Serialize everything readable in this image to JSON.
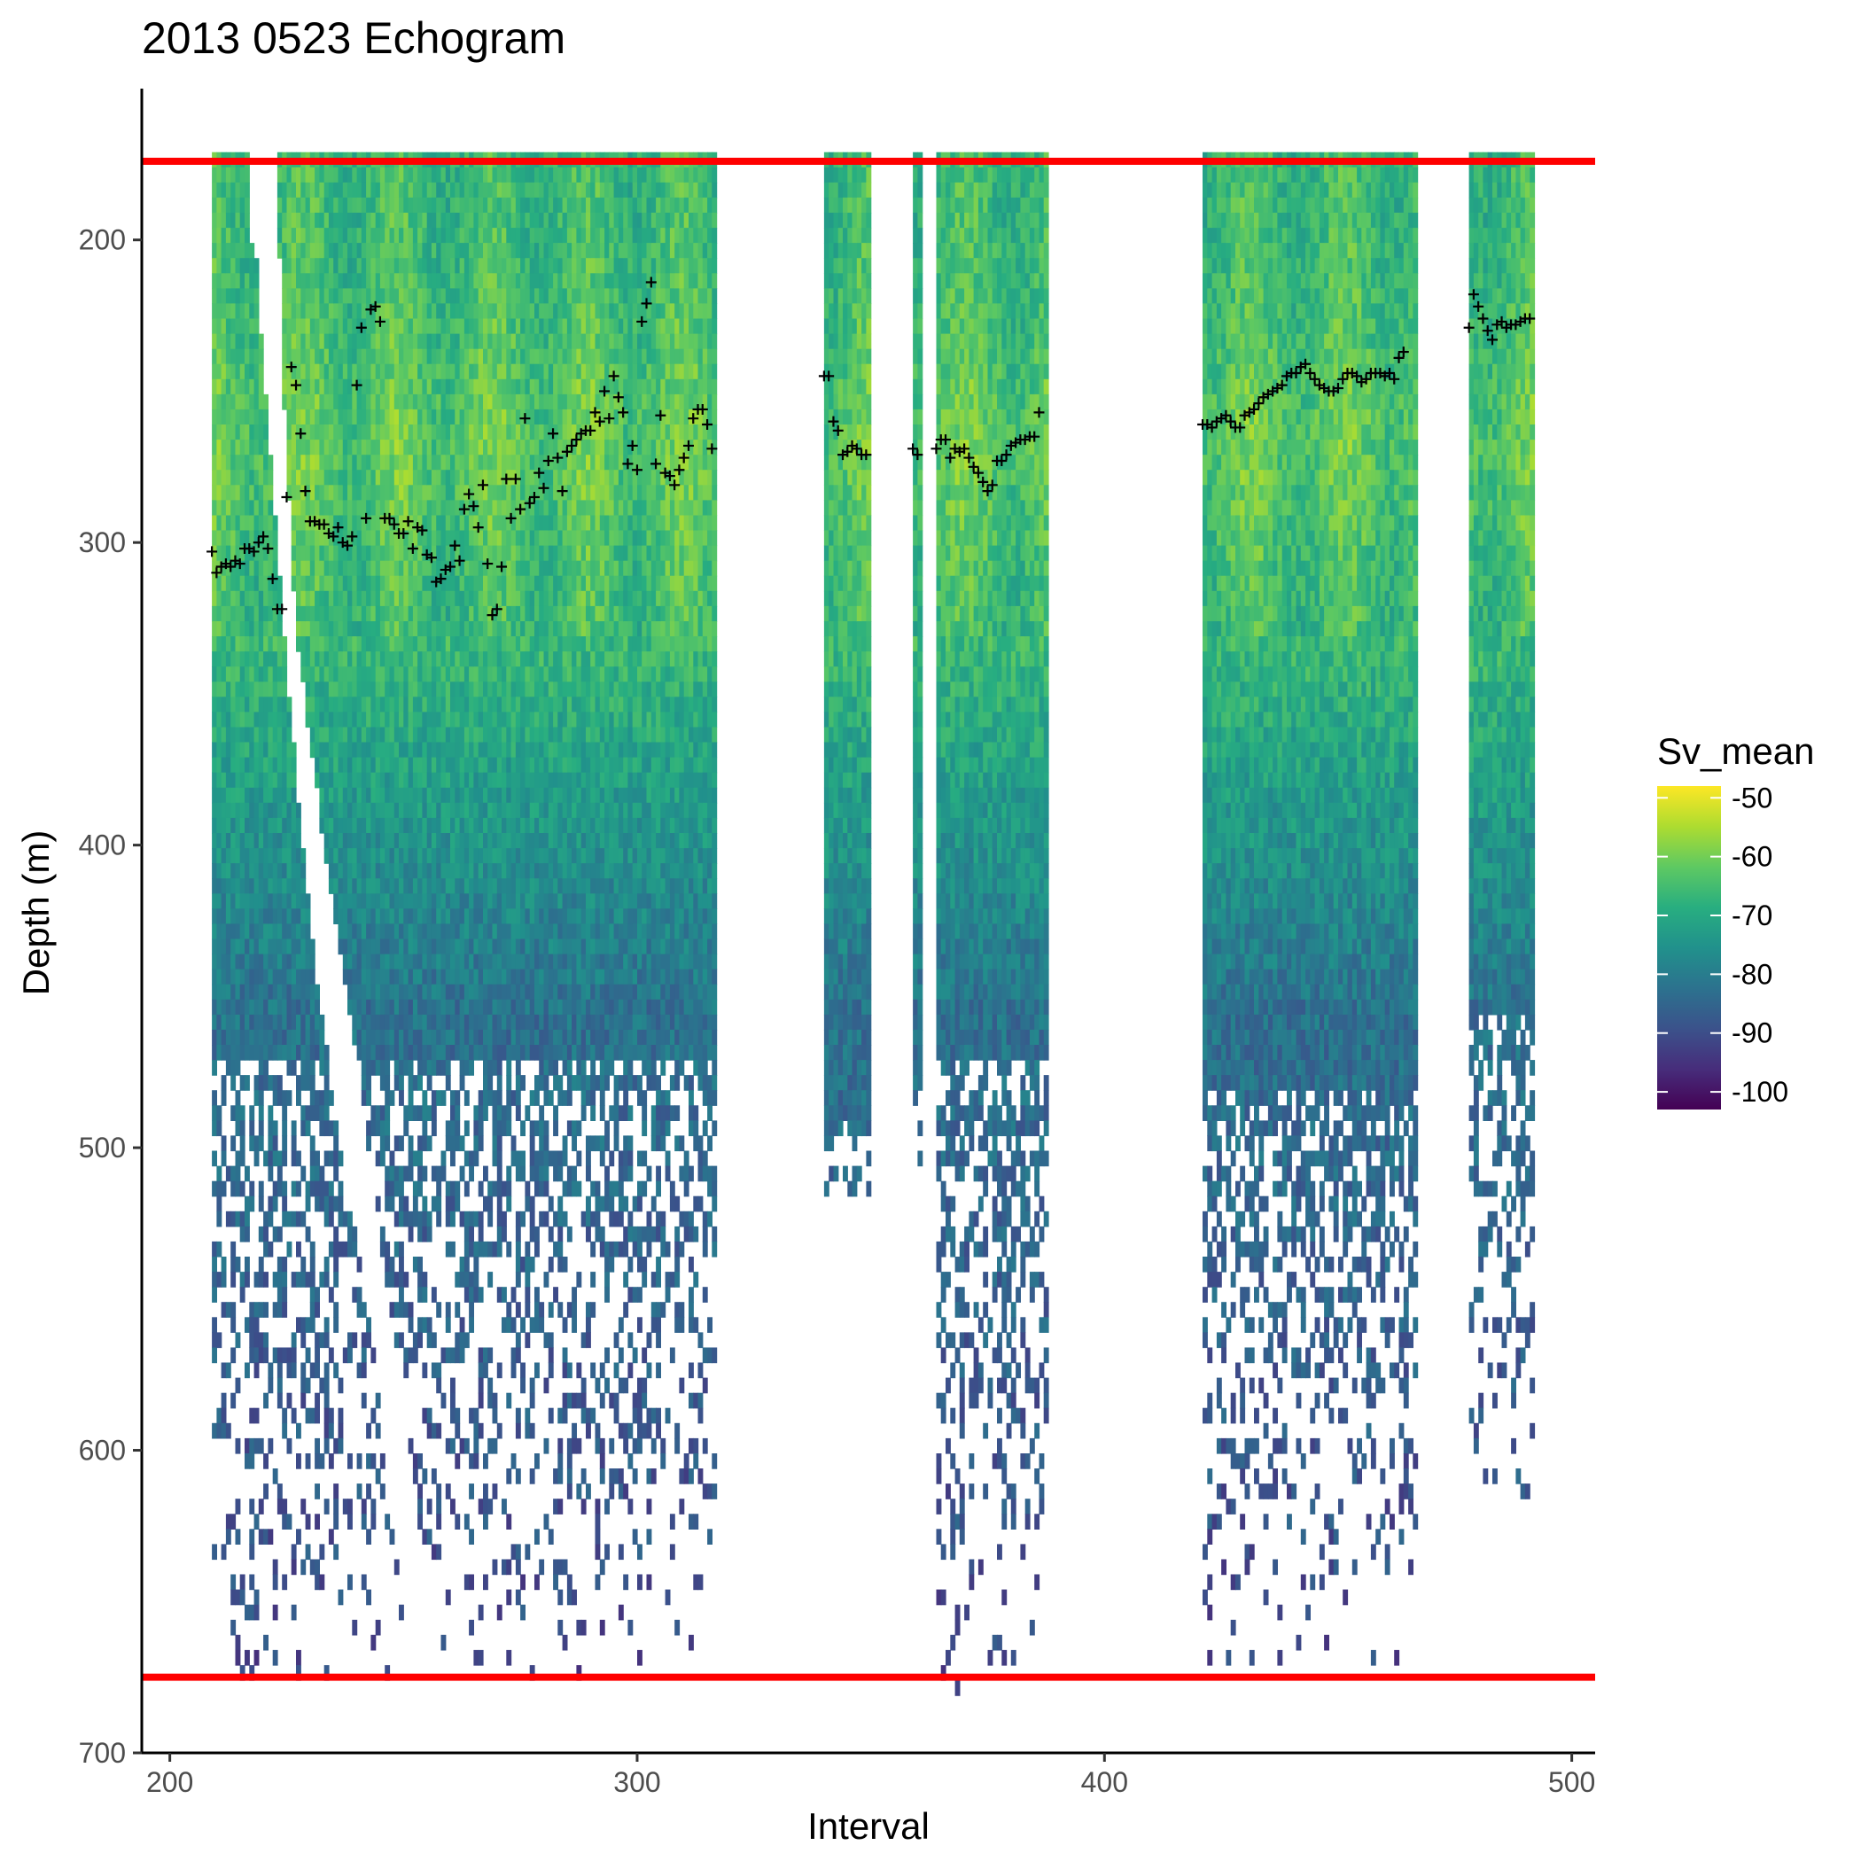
{
  "chart_data": {
    "type": "heatmap",
    "title": "2013 0523 Echogram",
    "xlabel": "Interval",
    "ylabel": "Depth (m)",
    "xlim": [
      194,
      505
    ],
    "ylim": [
      700,
      150
    ],
    "x_ticks": [
      200,
      300,
      400,
      500
    ],
    "x_tick_labels": [
      "200",
      "300",
      "400",
      "500"
    ],
    "y_ticks": [
      200,
      300,
      400,
      500,
      600,
      700
    ],
    "y_tick_labels": [
      "200",
      "300",
      "400",
      "500",
      "600",
      "700"
    ],
    "grid": false,
    "colorscale": "viridis",
    "legend": {
      "title": "Sv_mean",
      "placement": "right",
      "range": [
        -103,
        -48
      ],
      "ticks": [
        -50,
        -60,
        -70,
        -80,
        -90,
        -100
      ],
      "tick_labels": [
        "-50",
        "-60",
        "-70",
        "-80",
        "-90",
        "-100"
      ]
    },
    "reference_lines": [
      {
        "depth": 174,
        "color": "#ff0000"
      },
      {
        "depth": 675,
        "color": "#ff0000"
      }
    ],
    "data_blocks": [
      {
        "x_start": 209,
        "x_end": 317,
        "top": 171,
        "bottom": 675,
        "dense_to": 470
      },
      {
        "x_start": 340,
        "x_end": 350,
        "top": 171,
        "bottom": 515,
        "dense_to": 490
      },
      {
        "x_start": 359,
        "x_end": 361,
        "top": 171,
        "bottom": 505,
        "dense_to": 480
      },
      {
        "x_start": 364,
        "x_end": 388,
        "top": 171,
        "bottom": 680,
        "dense_to": 470
      },
      {
        "x_start": 421,
        "x_end": 467,
        "top": 171,
        "bottom": 670,
        "dense_to": 480
      },
      {
        "x_start": 478,
        "x_end": 492,
        "top": 171,
        "bottom": 615,
        "dense_to": 455
      }
    ],
    "gaps": [
      {
        "x_start": 217,
        "x_end": 223,
        "top": 171,
        "bottom": 200
      },
      {
        "x_start": 350,
        "x_end": 359,
        "top": 171,
        "bottom": 700
      },
      {
        "x_start": 361,
        "x_end": 364,
        "top": 171,
        "bottom": 700
      },
      {
        "x_start": 388,
        "x_end": 421,
        "top": 171,
        "bottom": 700
      },
      {
        "x_start": 467,
        "x_end": 478,
        "top": 171,
        "bottom": 700
      }
    ],
    "exclusion_wedge": {
      "points": [
        [
          217,
          171
        ],
        [
          223,
          171
        ],
        [
          224,
          240
        ],
        [
          227,
          330
        ],
        [
          233,
          400
        ],
        [
          240,
          470
        ],
        [
          246,
          540
        ],
        [
          250,
          580
        ],
        [
          254,
          640
        ],
        [
          257,
          675
        ],
        [
          252,
          675
        ],
        [
          247,
          620
        ],
        [
          243,
          560
        ],
        [
          237,
          505
        ],
        [
          231,
          440
        ],
        [
          226,
          360
        ],
        [
          222,
          280
        ],
        [
          219,
          220
        ]
      ]
    },
    "max_sv_markers": {
      "symbol": "+",
      "points": [
        [
          209,
          303
        ],
        [
          210,
          310
        ],
        [
          211,
          308
        ],
        [
          212,
          307
        ],
        [
          213,
          308
        ],
        [
          214,
          306
        ],
        [
          215,
          307
        ],
        [
          216,
          302
        ],
        [
          217,
          302
        ],
        [
          218,
          303
        ],
        [
          219,
          300
        ],
        [
          220,
          298
        ],
        [
          221,
          302
        ],
        [
          222,
          312
        ],
        [
          223,
          322
        ],
        [
          224,
          322
        ],
        [
          225,
          285
        ],
        [
          226,
          242
        ],
        [
          227,
          248
        ],
        [
          228,
          264
        ],
        [
          229,
          283
        ],
        [
          230,
          293
        ],
        [
          231,
          293
        ],
        [
          232,
          294
        ],
        [
          233,
          294
        ],
        [
          234,
          297
        ],
        [
          235,
          298
        ],
        [
          236,
          295
        ],
        [
          237,
          300
        ],
        [
          238,
          301
        ],
        [
          239,
          298
        ],
        [
          240,
          248
        ],
        [
          241,
          229
        ],
        [
          242,
          292
        ],
        [
          243,
          223
        ],
        [
          244,
          222
        ],
        [
          245,
          227
        ],
        [
          246,
          292
        ],
        [
          247,
          292
        ],
        [
          248,
          294
        ],
        [
          249,
          297
        ],
        [
          250,
          297
        ],
        [
          251,
          293
        ],
        [
          252,
          302
        ],
        [
          253,
          295
        ],
        [
          254,
          296
        ],
        [
          255,
          304
        ],
        [
          256,
          305
        ],
        [
          257,
          313
        ],
        [
          258,
          312
        ],
        [
          259,
          309
        ],
        [
          260,
          308
        ],
        [
          261,
          301
        ],
        [
          262,
          306
        ],
        [
          263,
          289
        ],
        [
          264,
          284
        ],
        [
          265,
          288
        ],
        [
          266,
          295
        ],
        [
          267,
          281
        ],
        [
          268,
          307
        ],
        [
          269,
          324
        ],
        [
          270,
          322
        ],
        [
          271,
          308
        ],
        [
          272,
          279
        ],
        [
          273,
          292
        ],
        [
          274,
          279
        ],
        [
          275,
          289
        ],
        [
          276,
          259
        ],
        [
          277,
          287
        ],
        [
          278,
          285
        ],
        [
          279,
          277
        ],
        [
          280,
          282
        ],
        [
          281,
          273
        ],
        [
          282,
          264
        ],
        [
          283,
          272
        ],
        [
          284,
          283
        ],
        [
          285,
          270
        ],
        [
          286,
          268
        ],
        [
          287,
          266
        ],
        [
          288,
          264
        ],
        [
          289,
          263
        ],
        [
          290,
          263
        ],
        [
          291,
          257
        ],
        [
          292,
          260
        ],
        [
          293,
          250
        ],
        [
          294,
          259
        ],
        [
          295,
          245
        ],
        [
          296,
          252
        ],
        [
          297,
          257
        ],
        [
          298,
          274
        ],
        [
          299,
          268
        ],
        [
          300,
          276
        ],
        [
          301,
          227
        ],
        [
          302,
          221
        ],
        [
          303,
          214
        ],
        [
          304,
          274
        ],
        [
          305,
          258
        ],
        [
          306,
          277
        ],
        [
          307,
          278
        ],
        [
          308,
          281
        ],
        [
          309,
          276
        ],
        [
          310,
          272
        ],
        [
          311,
          268
        ],
        [
          312,
          259
        ],
        [
          313,
          256
        ],
        [
          314,
          256
        ],
        [
          315,
          261
        ],
        [
          316,
          269
        ],
        [
          340,
          245
        ],
        [
          341,
          245
        ],
        [
          342,
          260
        ],
        [
          343,
          263
        ],
        [
          344,
          271
        ],
        [
          345,
          270
        ],
        [
          346,
          268
        ],
        [
          347,
          269
        ],
        [
          348,
          271
        ],
        [
          349,
          271
        ],
        [
          359,
          269
        ],
        [
          360,
          271
        ],
        [
          364,
          269
        ],
        [
          365,
          266
        ],
        [
          366,
          266
        ],
        [
          367,
          272
        ],
        [
          368,
          269
        ],
        [
          369,
          270
        ],
        [
          370,
          269
        ],
        [
          371,
          272
        ],
        [
          372,
          275
        ],
        [
          373,
          277
        ],
        [
          374,
          280
        ],
        [
          375,
          283
        ],
        [
          376,
          281
        ],
        [
          377,
          273
        ],
        [
          378,
          273
        ],
        [
          379,
          271
        ],
        [
          380,
          268
        ],
        [
          381,
          267
        ],
        [
          382,
          266
        ],
        [
          383,
          266
        ],
        [
          384,
          265
        ],
        [
          385,
          265
        ],
        [
          386,
          257
        ],
        [
          421,
          261
        ],
        [
          422,
          261
        ],
        [
          423,
          262
        ],
        [
          424,
          260
        ],
        [
          425,
          259
        ],
        [
          426,
          258
        ],
        [
          427,
          260
        ],
        [
          428,
          262
        ],
        [
          429,
          262
        ],
        [
          430,
          258
        ],
        [
          431,
          257
        ],
        [
          432,
          256
        ],
        [
          433,
          254
        ],
        [
          434,
          252
        ],
        [
          435,
          251
        ],
        [
          436,
          250
        ],
        [
          437,
          249
        ],
        [
          438,
          248
        ],
        [
          439,
          245
        ],
        [
          440,
          244
        ],
        [
          441,
          244
        ],
        [
          442,
          242
        ],
        [
          443,
          241
        ],
        [
          444,
          244
        ],
        [
          445,
          246
        ],
        [
          446,
          248
        ],
        [
          447,
          249
        ],
        [
          448,
          250
        ],
        [
          449,
          250
        ],
        [
          450,
          249
        ],
        [
          451,
          246
        ],
        [
          452,
          244
        ],
        [
          453,
          244
        ],
        [
          454,
          245
        ],
        [
          455,
          247
        ],
        [
          456,
          246
        ],
        [
          457,
          244
        ],
        [
          458,
          244
        ],
        [
          459,
          244
        ],
        [
          460,
          245
        ],
        [
          461,
          244
        ],
        [
          462,
          246
        ],
        [
          463,
          239
        ],
        [
          464,
          237
        ],
        [
          478,
          229
        ],
        [
          479,
          218
        ],
        [
          480,
          222
        ],
        [
          481,
          226
        ],
        [
          482,
          230
        ],
        [
          483,
          233
        ],
        [
          484,
          228
        ],
        [
          485,
          227
        ],
        [
          486,
          229
        ],
        [
          487,
          228
        ],
        [
          488,
          228
        ],
        [
          489,
          227
        ],
        [
          490,
          226
        ],
        [
          491,
          226
        ]
      ]
    }
  }
}
